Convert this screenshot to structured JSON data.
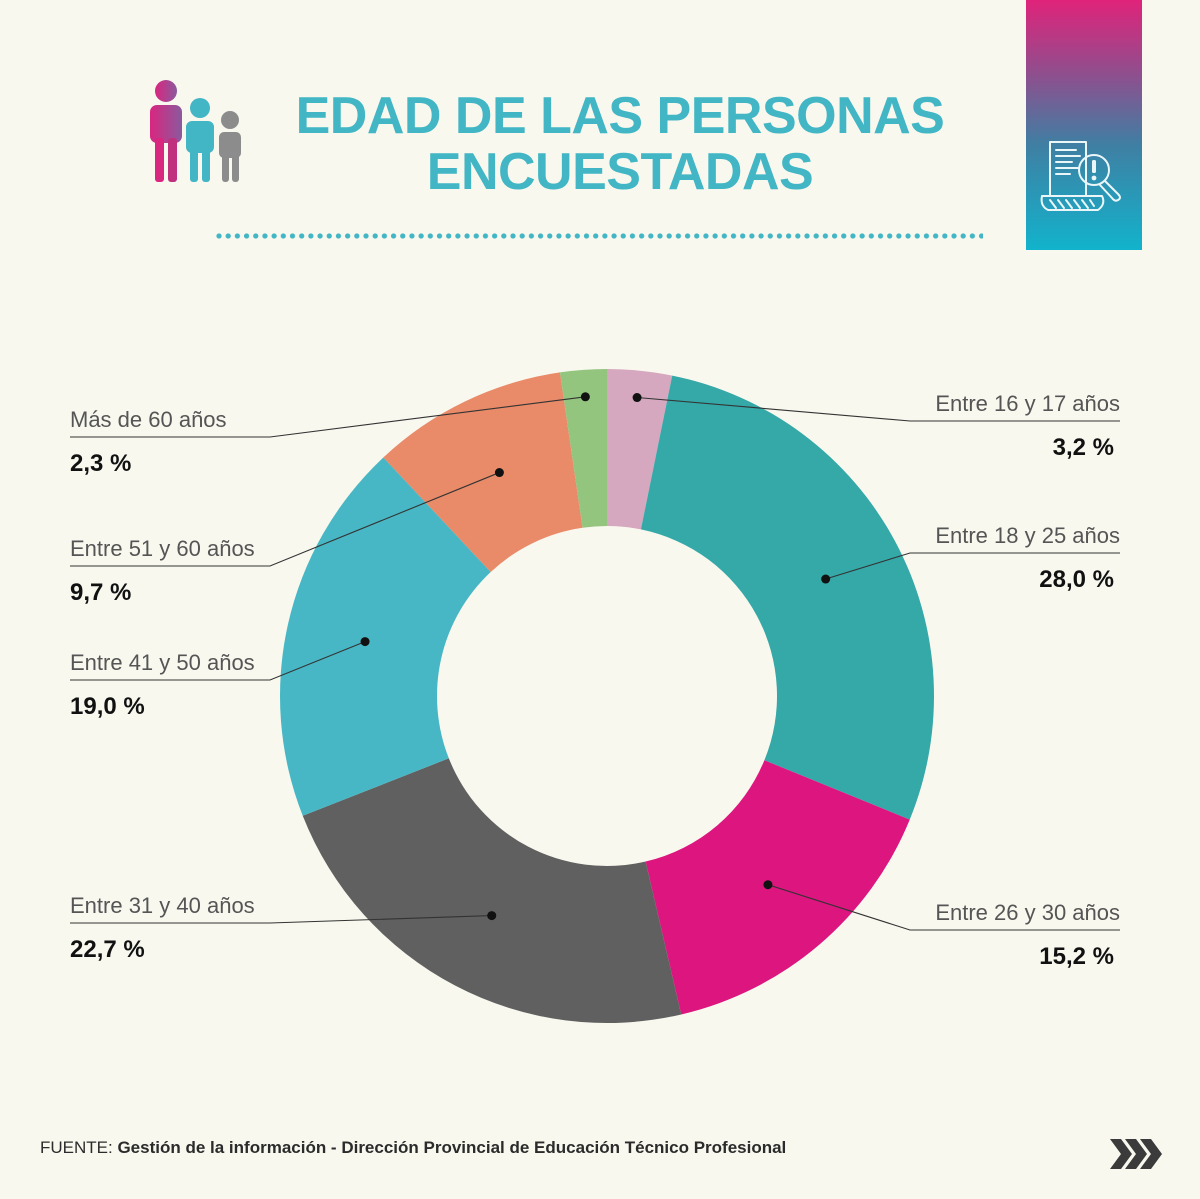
{
  "title": {
    "line1": "EDAD DE LAS PERSONAS",
    "line2": "ENCUESTADAS"
  },
  "icons": {
    "people": "people-group-icon",
    "report": "report-search-icon",
    "next": "triple-chevron-right-icon"
  },
  "colors": {
    "background": "#F9F8EF",
    "title": "#42B6C4",
    "badge_top": "#E0237A",
    "badge_bottom": "#12B3CC",
    "label": "#555555",
    "value": "#111111"
  },
  "chart_data": {
    "type": "pie",
    "donut": true,
    "start": "top",
    "direction": "clockwise",
    "legend": "none",
    "slices": [
      {
        "label": "Entre 16 y 17 años",
        "value": 3.2,
        "display": "3,2 %",
        "color": "#D5A8BF",
        "side": "right"
      },
      {
        "label": "Entre 18 y 25 años",
        "value": 28.0,
        "display": "28,0 %",
        "color": "#35A8A8",
        "side": "right"
      },
      {
        "label": "Entre 26 y 30 años",
        "value": 15.2,
        "display": "15,2 %",
        "color": "#DC157F",
        "side": "right"
      },
      {
        "label": "Entre 31 y 40 años",
        "value": 22.7,
        "display": "22,7 %",
        "color": "#606060",
        "side": "left"
      },
      {
        "label": "Entre 41 y 50 años",
        "value": 19.0,
        "display": "19,0 %",
        "color": "#48B7C5",
        "side": "left"
      },
      {
        "label": "Entre 51 y 60 años",
        "value": 9.7,
        "display": "9,7 %",
        "color": "#E98A69",
        "side": "left"
      },
      {
        "label": "Más de 60 años",
        "value": 2.3,
        "display": "2,3 %",
        "color": "#94C57F",
        "side": "left"
      }
    ]
  },
  "footer": {
    "source_prefix": "FUENTE:",
    "source_text": " Gestión de la información - Dirección Provincial de Educación Técnico Profesional"
  }
}
